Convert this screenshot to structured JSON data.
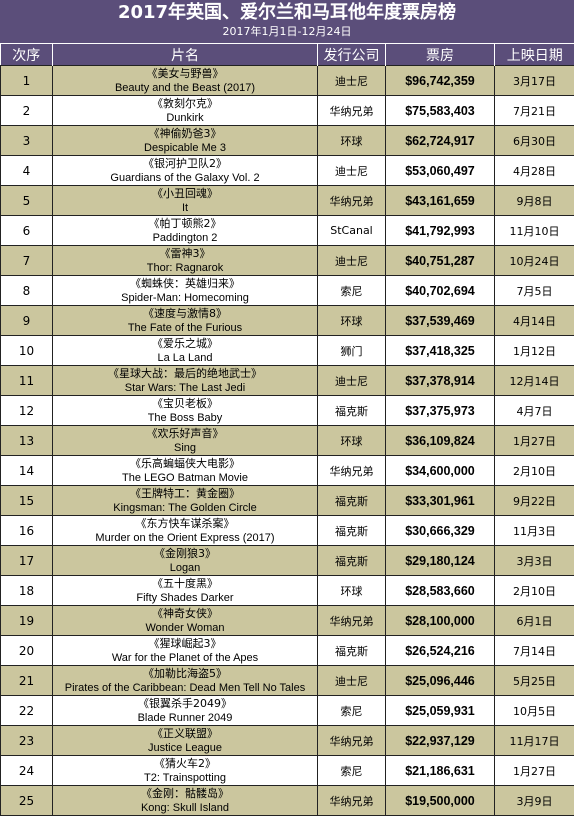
{
  "header": {
    "title": "2017年英国、爱尔兰和马耳他年度票房榜",
    "subtitle": "2017年1月1日-12月24日"
  },
  "columns": {
    "rank": "次序",
    "film": "片名",
    "distributor": "发行公司",
    "gross": "票房",
    "release_date": "上映日期"
  },
  "rows": [
    {
      "rank": "1",
      "title_cn": "《美女与野兽》",
      "title_en": "Beauty and the Beast (2017)",
      "distributor": "迪士尼",
      "gross": "$96,742,359",
      "release_date": "3月17日"
    },
    {
      "rank": "2",
      "title_cn": "《敦刻尔克》",
      "title_en": "Dunkirk",
      "distributor": "华纳兄弟",
      "gross": "$75,583,403",
      "release_date": "7月21日"
    },
    {
      "rank": "3",
      "title_cn": "《神偷奶爸3》",
      "title_en": "Despicable Me 3",
      "distributor": "环球",
      "gross": "$62,724,917",
      "release_date": "6月30日"
    },
    {
      "rank": "4",
      "title_cn": "《银河护卫队2》",
      "title_en": "Guardians of the Galaxy Vol. 2",
      "distributor": "迪士尼",
      "gross": "$53,060,497",
      "release_date": "4月28日"
    },
    {
      "rank": "5",
      "title_cn": "《小丑回魂》",
      "title_en": "It",
      "distributor": "华纳兄弟",
      "gross": "$43,161,659",
      "release_date": "9月8日"
    },
    {
      "rank": "6",
      "title_cn": "《帕丁顿熊2》",
      "title_en": "Paddington 2",
      "distributor": "StCanal",
      "gross": "$41,792,993",
      "release_date": "11月10日"
    },
    {
      "rank": "7",
      "title_cn": "《雷神3》",
      "title_en": "Thor: Ragnarok",
      "distributor": "迪士尼",
      "gross": "$40,751,287",
      "release_date": "10月24日"
    },
    {
      "rank": "8",
      "title_cn": "《蜘蛛侠：英雄归来》",
      "title_en": "Spider-Man: Homecoming",
      "distributor": "索尼",
      "gross": "$40,702,694",
      "release_date": "7月5日"
    },
    {
      "rank": "9",
      "title_cn": "《速度与激情8》",
      "title_en": "The Fate of the Furious",
      "distributor": "环球",
      "gross": "$37,539,469",
      "release_date": "4月14日"
    },
    {
      "rank": "10",
      "title_cn": "《爱乐之城》",
      "title_en": "La La Land",
      "distributor": "狮门",
      "gross": "$37,418,325",
      "release_date": "1月12日"
    },
    {
      "rank": "11",
      "title_cn": "《星球大战：最后的绝地武士》",
      "title_en": "Star Wars: The Last Jedi",
      "distributor": "迪士尼",
      "gross": "$37,378,914",
      "release_date": "12月14日"
    },
    {
      "rank": "12",
      "title_cn": "《宝贝老板》",
      "title_en": "The Boss Baby",
      "distributor": "福克斯",
      "gross": "$37,375,973",
      "release_date": "4月7日"
    },
    {
      "rank": "13",
      "title_cn": "《欢乐好声音》",
      "title_en": "Sing",
      "distributor": "环球",
      "gross": "$36,109,824",
      "release_date": "1月27日"
    },
    {
      "rank": "14",
      "title_cn": "《乐高蝙蝠侠大电影》",
      "title_en": "The LEGO Batman Movie",
      "distributor": "华纳兄弟",
      "gross": "$34,600,000",
      "release_date": "2月10日"
    },
    {
      "rank": "15",
      "title_cn": "《王牌特工：黄金圈》",
      "title_en": "Kingsman: The Golden Circle",
      "distributor": "福克斯",
      "gross": "$33,301,961",
      "release_date": "9月22日"
    },
    {
      "rank": "16",
      "title_cn": "《东方快车谋杀案》",
      "title_en": "Murder on the Orient Express (2017)",
      "distributor": "福克斯",
      "gross": "$30,666,329",
      "release_date": "11月3日"
    },
    {
      "rank": "17",
      "title_cn": "《金刚狼3》",
      "title_en": "Logan",
      "distributor": "福克斯",
      "gross": "$29,180,124",
      "release_date": "3月3日"
    },
    {
      "rank": "18",
      "title_cn": "《五十度黑》",
      "title_en": "Fifty Shades Darker",
      "distributor": "环球",
      "gross": "$28,583,660",
      "release_date": "2月10日"
    },
    {
      "rank": "19",
      "title_cn": "《神奇女侠》",
      "title_en": "Wonder Woman",
      "distributor": "华纳兄弟",
      "gross": "$28,100,000",
      "release_date": "6月1日"
    },
    {
      "rank": "20",
      "title_cn": "《猩球崛起3》",
      "title_en": "War for the Planet of the Apes",
      "distributor": "福克斯",
      "gross": "$26,524,216",
      "release_date": "7月14日"
    },
    {
      "rank": "21",
      "title_cn": "《加勒比海盗5》",
      "title_en": "Pirates of the Caribbean: Dead Men Tell No Tales",
      "distributor": "迪士尼",
      "gross": "$25,096,446",
      "release_date": "5月25日"
    },
    {
      "rank": "22",
      "title_cn": "《银翼杀手2049》",
      "title_en": "Blade Runner 2049",
      "distributor": "索尼",
      "gross": "$25,059,931",
      "release_date": "10月5日"
    },
    {
      "rank": "23",
      "title_cn": "《正义联盟》",
      "title_en": "Justice League",
      "distributor": "华纳兄弟",
      "gross": "$22,937,129",
      "release_date": "11月17日"
    },
    {
      "rank": "24",
      "title_cn": "《猜火车2》",
      "title_en": "T2: Trainspotting",
      "distributor": "索尼",
      "gross": "$21,186,631",
      "release_date": "1月27日"
    },
    {
      "rank": "25",
      "title_cn": "《金刚：骷髅岛》",
      "title_en": "Kong: Skull Island",
      "distributor": "华纳兄弟",
      "gross": "$19,500,000",
      "release_date": "3月9日"
    }
  ]
}
